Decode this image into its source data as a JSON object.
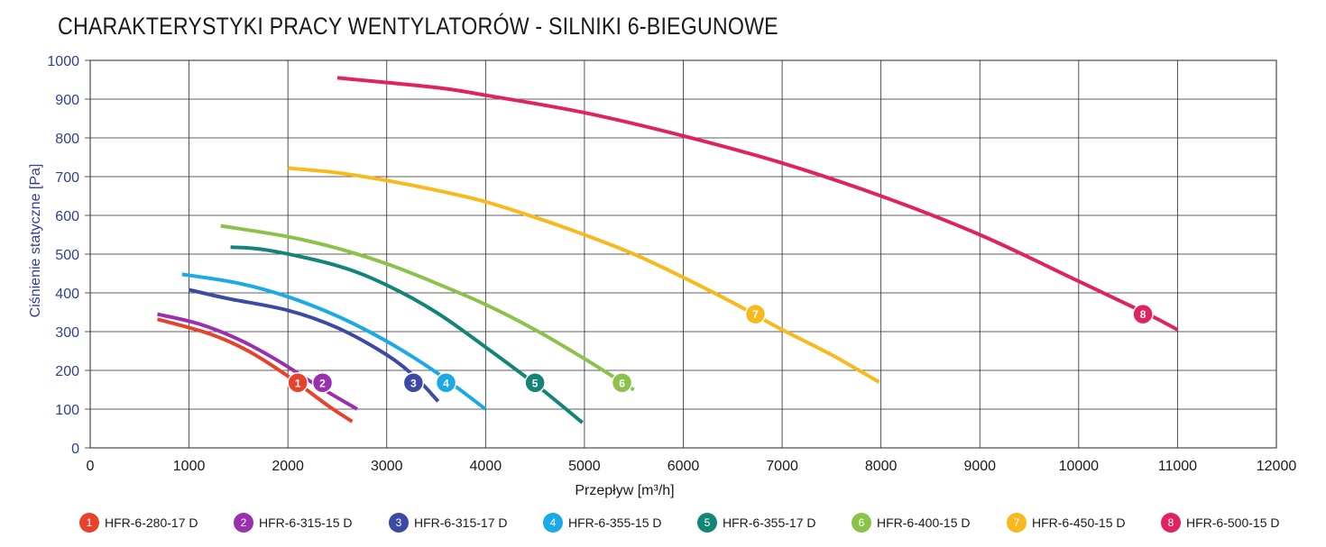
{
  "chart_data": {
    "type": "line",
    "title": "CHARAKTERYSTYKI PRACY WENTYLATORÓW - SILNIKI 6-BIEGUNOWE",
    "xlabel": "Przepływ [m³/h]",
    "ylabel": "Ciśnienie statyczne [Pa]",
    "xlim": [
      0,
      12000
    ],
    "ylim": [
      0,
      1000
    ],
    "xticks": [
      "0",
      "1000",
      "2000",
      "3000",
      "4000",
      "5000",
      "6000",
      "7000",
      "8000",
      "9000",
      "10000",
      "11000",
      "12000"
    ],
    "yticks": [
      "0",
      "100",
      "200",
      "300",
      "400",
      "500",
      "600",
      "700",
      "800",
      "900",
      "1000"
    ],
    "grid": true,
    "legend_position": "bottom",
    "series": [
      {
        "id": "1",
        "name": "HFR-6-280-17 D",
        "color": "#e8412c",
        "x": [
          680,
          1200,
          1600,
          2000,
          2400,
          2650
        ],
        "y": [
          332,
          295,
          250,
          185,
          110,
          68
        ],
        "marker": {
          "x": 2100,
          "y": 168
        }
      },
      {
        "id": "2",
        "name": "HFR-6-315-15 D",
        "color": "#9a2fb0",
        "x": [
          680,
          1100,
          1500,
          1900,
          2300,
          2700
        ],
        "y": [
          345,
          320,
          280,
          225,
          160,
          100
        ],
        "marker": {
          "x": 2350,
          "y": 168
        }
      },
      {
        "id": "3",
        "name": "HFR-6-315-17 D",
        "color": "#3c4aa5",
        "x": [
          1000,
          1400,
          2000,
          2500,
          3000,
          3300,
          3520
        ],
        "y": [
          408,
          385,
          355,
          310,
          240,
          180,
          120
        ],
        "marker": {
          "x": 3270,
          "y": 168
        }
      },
      {
        "id": "4",
        "name": "HFR-6-355-15 D",
        "color": "#1ca9e8",
        "x": [
          930,
          1500,
          2000,
          2500,
          3000,
          3500,
          4000
        ],
        "y": [
          448,
          425,
          390,
          340,
          275,
          195,
          100
        ],
        "marker": {
          "x": 3600,
          "y": 168
        }
      },
      {
        "id": "5",
        "name": "HFR-6-355-17 D",
        "color": "#128577",
        "x": [
          1420,
          1800,
          2500,
          3000,
          3500,
          4000,
          4500,
          4980
        ],
        "y": [
          518,
          510,
          470,
          420,
          350,
          260,
          165,
          65
        ],
        "marker": {
          "x": 4500,
          "y": 168
        }
      },
      {
        "id": "6",
        "name": "HFR-6-400-15 D",
        "color": "#8bc34a",
        "x": [
          1320,
          2000,
          2500,
          3000,
          3500,
          4000,
          4500,
          5000,
          5500
        ],
        "y": [
          573,
          545,
          515,
          475,
          425,
          370,
          305,
          230,
          150
        ],
        "marker": {
          "x": 5380,
          "y": 168
        }
      },
      {
        "id": "7",
        "name": "HFR-6-450-15 D",
        "color": "#f7b91c",
        "x": [
          2000,
          2500,
          3000,
          3500,
          4000,
          4500,
          5000,
          5500,
          6000,
          6500,
          7000,
          7500,
          7980
        ],
        "y": [
          722,
          710,
          690,
          665,
          635,
          595,
          550,
          500,
          440,
          375,
          305,
          240,
          170
        ],
        "marker": {
          "x": 6730,
          "y": 345
        }
      },
      {
        "id": "8",
        "name": "HFR-6-500-15 D",
        "color": "#e0235f",
        "x": [
          2500,
          3500,
          4000,
          5000,
          6000,
          7000,
          8000,
          9000,
          10000,
          10700,
          11000
        ],
        "y": [
          955,
          930,
          910,
          865,
          805,
          735,
          650,
          550,
          430,
          345,
          305
        ],
        "marker": {
          "x": 10650,
          "y": 345
        }
      }
    ]
  }
}
